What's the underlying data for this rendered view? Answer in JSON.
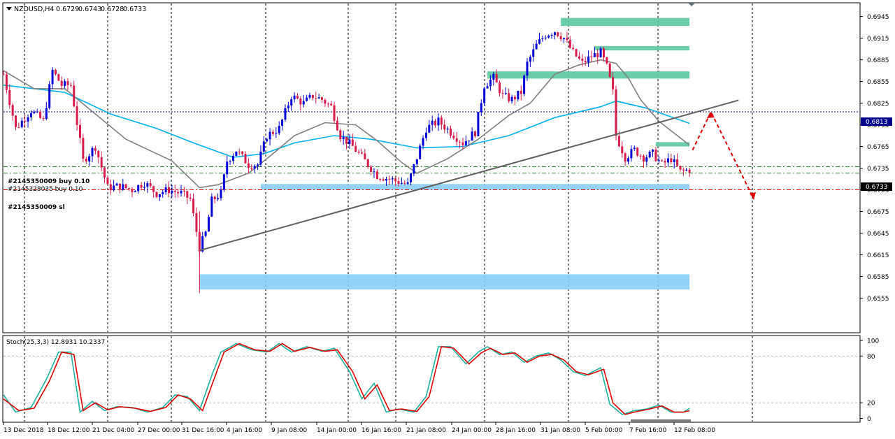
{
  "chart_data": [
    {
      "type": "candlestick",
      "header": {
        "symbol": "NZDUSD,H4",
        "open": "0.6729",
        "high": "0.6743",
        "low": "0.6728",
        "close": "0.6733"
      },
      "ylim": [
        0.655,
        0.6955
      ],
      "y_ticks": [
        "0.6945",
        "0.6915",
        "0.6885",
        "0.6855",
        "0.6825",
        "0.6795",
        "0.6765",
        "0.6735",
        "0.6705",
        "0.6675",
        "0.6645",
        "0.6615",
        "0.6585",
        "0.6555"
      ],
      "x_ticks": [
        "13 Dec 2018",
        "18 Dec 12:00",
        "21 Dec 04:00",
        "27 Dec 00:00",
        "31 Dec 16:00",
        "4 Jan 16:00",
        "9 Jan 08:00",
        "14 Jan 00:00",
        "16 Jan 16:00",
        "21 Jan 08:00",
        "24 Jan 00:00",
        "28 Jan 16:00",
        "31 Jan 08:00",
        "5 Feb 00:00",
        "7 Feb 16:00",
        "12 Feb 08:00"
      ],
      "grid": true,
      "price_labels": {
        "horizontal_line": "0.6813",
        "current_price": "0.6733"
      },
      "order_labels": [
        "#2145350009 buy 0.10",
        "#2145328035 buy 0.10",
        "#2145350009 sl"
      ],
      "order_levels": [
        0.6737,
        0.6728,
        0.6705
      ],
      "candle_anchors": [
        [
          0,
          0.6865
        ],
        [
          4,
          0.679
        ],
        [
          9,
          0.6815
        ],
        [
          13,
          0.68
        ],
        [
          16,
          0.687
        ],
        [
          19,
          0.685
        ],
        [
          22,
          0.685
        ],
        [
          26,
          0.6745
        ],
        [
          30,
          0.6765
        ],
        [
          34,
          0.6708
        ],
        [
          38,
          0.671
        ],
        [
          42,
          0.6705
        ],
        [
          46,
          0.6715
        ],
        [
          50,
          0.67
        ],
        [
          54,
          0.6705
        ],
        [
          58,
          0.67
        ],
        [
          61,
          0.6692
        ],
        [
          64,
          0.6625
        ],
        [
          66,
          0.6645
        ],
        [
          68,
          0.669
        ],
        [
          71,
          0.67
        ],
        [
          73,
          0.6745
        ],
        [
          76,
          0.676
        ],
        [
          80,
          0.674
        ],
        [
          83,
          0.674
        ],
        [
          86,
          0.678
        ],
        [
          90,
          0.679
        ],
        [
          94,
          0.6835
        ],
        [
          98,
          0.6825
        ],
        [
          101,
          0.6835
        ],
        [
          104,
          0.683
        ],
        [
          107,
          0.682
        ],
        [
          110,
          0.678
        ],
        [
          114,
          0.6765
        ],
        [
          118,
          0.6745
        ],
        [
          122,
          0.6725
        ],
        [
          126,
          0.672
        ],
        [
          130,
          0.6715
        ],
        [
          132,
          0.6712
        ],
        [
          135,
          0.675
        ],
        [
          138,
          0.679
        ],
        [
          142,
          0.68
        ],
        [
          146,
          0.6785
        ],
        [
          150,
          0.677
        ],
        [
          154,
          0.6785
        ],
        [
          157,
          0.685
        ],
        [
          160,
          0.686
        ],
        [
          163,
          0.6835
        ],
        [
          166,
          0.683
        ],
        [
          169,
          0.684
        ],
        [
          171,
          0.688
        ],
        [
          174,
          0.6905
        ],
        [
          177,
          0.692
        ],
        [
          180,
          0.6925
        ],
        [
          183,
          0.6915
        ],
        [
          186,
          0.6895
        ],
        [
          189,
          0.688
        ],
        [
          192,
          0.689
        ],
        [
          195,
          0.6895
        ],
        [
          197,
          0.6875
        ],
        [
          199,
          0.684
        ],
        [
          200,
          0.678
        ],
        [
          203,
          0.675
        ],
        [
          206,
          0.676
        ],
        [
          209,
          0.675
        ],
        [
          212,
          0.6755
        ],
        [
          215,
          0.674
        ],
        [
          218,
          0.6748
        ],
        [
          221,
          0.673
        ],
        [
          224,
          0.6733
        ]
      ],
      "moving_averages": [
        {
          "color": "#00b0f0",
          "points": [
            [
              0,
              0.685
            ],
            [
              20,
              0.684
            ],
            [
              35,
              0.681
            ],
            [
              50,
              0.679
            ],
            [
              62,
              0.677
            ],
            [
              75,
              0.675
            ],
            [
              85,
              0.6755
            ],
            [
              95,
              0.677
            ],
            [
              108,
              0.678
            ],
            [
              120,
              0.6775
            ],
            [
              135,
              0.6763
            ],
            [
              150,
              0.6765
            ],
            [
              165,
              0.678
            ],
            [
              180,
              0.6805
            ],
            [
              195,
              0.682
            ],
            [
              200,
              0.6828
            ],
            [
              210,
              0.6818
            ],
            [
              224,
              0.6797
            ]
          ]
        },
        {
          "color": "#808080",
          "points": [
            [
              0,
              0.687
            ],
            [
              10,
              0.6845
            ],
            [
              20,
              0.6845
            ],
            [
              30,
              0.681
            ],
            [
              40,
              0.6775
            ],
            [
              55,
              0.6745
            ],
            [
              64,
              0.6708
            ],
            [
              70,
              0.6712
            ],
            [
              80,
              0.6728
            ],
            [
              88,
              0.6755
            ],
            [
              95,
              0.678
            ],
            [
              105,
              0.6798
            ],
            [
              115,
              0.6795
            ],
            [
              122,
              0.6773
            ],
            [
              130,
              0.6743
            ],
            [
              135,
              0.6728
            ],
            [
              145,
              0.6748
            ],
            [
              155,
              0.6775
            ],
            [
              165,
              0.6808
            ],
            [
              172,
              0.6825
            ],
            [
              180,
              0.6865
            ],
            [
              188,
              0.6878
            ],
            [
              195,
              0.6885
            ],
            [
              200,
              0.688
            ],
            [
              204,
              0.686
            ],
            [
              208,
              0.683
            ],
            [
              214,
              0.68
            ],
            [
              220,
              0.678
            ],
            [
              224,
              0.6767
            ]
          ]
        }
      ],
      "trendline": [
        [
          64,
          0.6621
        ],
        [
          240,
          0.6829
        ]
      ],
      "zones": [
        {
          "x_from": 182,
          "x_to": 224,
          "y_low": 0.6932,
          "y_high": 0.6943,
          "color": "#5cc9a0"
        },
        {
          "x_from": 193,
          "x_to": 224,
          "y_low": 0.6898,
          "y_high": 0.6904,
          "color": "#5cc9a0"
        },
        {
          "x_from": 158,
          "x_to": 224,
          "y_low": 0.6859,
          "y_high": 0.6869,
          "color": "#5cc9a0"
        },
        {
          "x_from": 213,
          "x_to": 224,
          "y_low": 0.6765,
          "y_high": 0.6771,
          "color": "#5cc9a0"
        },
        {
          "x_from": 84,
          "x_to": 224,
          "y_low": 0.6705,
          "y_high": 0.6713,
          "color": "#87cefa"
        },
        {
          "x_from": 64,
          "x_to": 224,
          "y_low": 0.6567,
          "y_high": 0.6588,
          "color": "#87cefa"
        }
      ],
      "projection": [
        [
          225,
          0.676
        ],
        [
          231,
          0.6813
        ],
        [
          245,
          0.6692
        ]
      ]
    },
    {
      "type": "line",
      "title": "Stoch(25,3,3) 12.8931 10.2337",
      "ylim": [
        0,
        100
      ],
      "y_ticks": [
        "100",
        "80",
        "20",
        "0"
      ],
      "series": [
        {
          "color": "#20b0a0",
          "points": [
            [
              0,
              30
            ],
            [
              4,
              8
            ],
            [
              9,
              14
            ],
            [
              14,
              50
            ],
            [
              18,
              85
            ],
            [
              22,
              85
            ],
            [
              25,
              8
            ],
            [
              29,
              22
            ],
            [
              33,
              10
            ],
            [
              37,
              15
            ],
            [
              42,
              14
            ],
            [
              47,
              8
            ],
            [
              52,
              14
            ],
            [
              56,
              30
            ],
            [
              60,
              28
            ],
            [
              64,
              10
            ],
            [
              68,
              55
            ],
            [
              71,
              85
            ],
            [
              76,
              96
            ],
            [
              81,
              88
            ],
            [
              86,
              85
            ],
            [
              90,
              96
            ],
            [
              94,
              85
            ],
            [
              99,
              92
            ],
            [
              104,
              86
            ],
            [
              108,
              90
            ],
            [
              113,
              60
            ],
            [
              117,
              25
            ],
            [
              121,
              45
            ],
            [
              125,
              8
            ],
            [
              129,
              12
            ],
            [
              134,
              8
            ],
            [
              138,
              28
            ],
            [
              142,
              92
            ],
            [
              146,
              92
            ],
            [
              151,
              70
            ],
            [
              155,
              85
            ],
            [
              158,
              92
            ],
            [
              162,
              82
            ],
            [
              166,
              85
            ],
            [
              170,
              72
            ],
            [
              174,
              80
            ],
            [
              178,
              84
            ],
            [
              182,
              75
            ],
            [
              186,
              60
            ],
            [
              190,
              55
            ],
            [
              195,
              65
            ],
            [
              198,
              18
            ],
            [
              202,
              5
            ],
            [
              206,
              10
            ],
            [
              210,
              12
            ],
            [
              214,
              17
            ],
            [
              218,
              8
            ],
            [
              222,
              8
            ],
            [
              224,
              13
            ]
          ]
        },
        {
          "color": "#e00000",
          "points": [
            [
              0,
              25
            ],
            [
              5,
              10
            ],
            [
              10,
              13
            ],
            [
              15,
              48
            ],
            [
              19,
              85
            ],
            [
              23,
              82
            ],
            [
              26,
              10
            ],
            [
              30,
              20
            ],
            [
              34,
              11
            ],
            [
              38,
              15
            ],
            [
              43,
              13
            ],
            [
              48,
              9
            ],
            [
              53,
              14
            ],
            [
              57,
              30
            ],
            [
              61,
              25
            ],
            [
              65,
              10
            ],
            [
              69,
              53
            ],
            [
              72,
              85
            ],
            [
              77,
              96
            ],
            [
              82,
              88
            ],
            [
              87,
              86
            ],
            [
              91,
              96
            ],
            [
              95,
              86
            ],
            [
              100,
              91
            ],
            [
              105,
              86
            ],
            [
              109,
              88
            ],
            [
              114,
              60
            ],
            [
              118,
              25
            ],
            [
              122,
              43
            ],
            [
              126,
              10
            ],
            [
              130,
              12
            ],
            [
              135,
              9
            ],
            [
              139,
              28
            ],
            [
              143,
              92
            ],
            [
              147,
              90
            ],
            [
              152,
              70
            ],
            [
              156,
              84
            ],
            [
              159,
              90
            ],
            [
              163,
              82
            ],
            [
              167,
              84
            ],
            [
              171,
              72
            ],
            [
              175,
              80
            ],
            [
              179,
              82
            ],
            [
              183,
              75
            ],
            [
              187,
              60
            ],
            [
              191,
              56
            ],
            [
              196,
              63
            ],
            [
              199,
              20
            ],
            [
              203,
              5
            ],
            [
              207,
              9
            ],
            [
              211,
              12
            ],
            [
              215,
              16
            ],
            [
              219,
              8
            ],
            [
              222,
              8
            ],
            [
              224,
              10
            ]
          ]
        }
      ]
    }
  ]
}
